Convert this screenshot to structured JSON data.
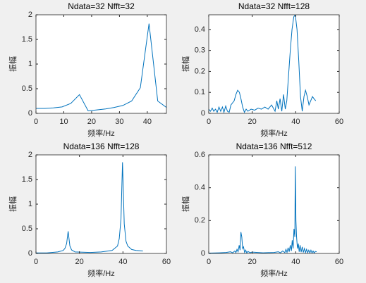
{
  "chart_data": [
    {
      "type": "line",
      "title": "Ndata=32 Nfft=32",
      "x_label": "频率/Hz",
      "y_label": "振幅",
      "x": [
        0,
        3.125,
        6.25,
        9.375,
        12.5,
        15.625,
        18.75,
        21.875,
        25,
        28.125,
        31.25,
        34.375,
        37.5,
        40.625,
        43.75,
        46.875
      ],
      "values": [
        0.1,
        0.1,
        0.11,
        0.13,
        0.2,
        0.38,
        0.05,
        0.07,
        0.09,
        0.12,
        0.16,
        0.25,
        0.52,
        1.82,
        0.25,
        0.12
      ],
      "color": "#0072bd",
      "xlim": [
        0,
        46.875
      ],
      "xticks": [
        0,
        10,
        20,
        30,
        40
      ],
      "ylim": [
        0,
        2
      ],
      "yticks": [
        0,
        0.5,
        1,
        1.5,
        2
      ]
    },
    {
      "type": "line",
      "title": "Ndata=32 Nfft=128",
      "x_label": "频率/Hz",
      "y_label": "振幅",
      "x": [
        0,
        0.8,
        1.6,
        2.3,
        3.1,
        3.9,
        4.7,
        5.5,
        6.3,
        7.0,
        7.8,
        8.6,
        9.4,
        10.2,
        11.7,
        12.5,
        13.3,
        14.1,
        14.8,
        15.6,
        16.4,
        17.2,
        18.0,
        19.5,
        21.1,
        22.7,
        24.2,
        25.8,
        27.3,
        28.9,
        30.5,
        31.3,
        32.0,
        32.8,
        33.6,
        34.4,
        35.2,
        35.9,
        36.7,
        37.5,
        38.3,
        39.1,
        39.8,
        40.6,
        41.4,
        42.2,
        43.0,
        43.8,
        44.5,
        45.3,
        46.1,
        46.9,
        47.7,
        48.4,
        49.2
      ],
      "values": [
        0.02,
        0.01,
        0.025,
        0.01,
        0.02,
        0.005,
        0.03,
        0.01,
        0.03,
        0.005,
        0.035,
        0.01,
        0.005,
        0.04,
        0.06,
        0.09,
        0.11,
        0.1,
        0.07,
        0.03,
        0.005,
        0.02,
        0.01,
        0.02,
        0.015,
        0.025,
        0.02,
        0.03,
        0.02,
        0.04,
        0.01,
        0.06,
        0.02,
        0.07,
        0.01,
        0.09,
        0.02,
        0.06,
        0.18,
        0.3,
        0.4,
        0.46,
        0.47,
        0.4,
        0.25,
        0.08,
        0.01,
        0.08,
        0.11,
        0.08,
        0.04,
        0.06,
        0.08,
        0.07,
        0.06
      ],
      "color": "#0072bd",
      "xlim": [
        0,
        60
      ],
      "xticks": [
        0,
        20,
        40,
        60
      ],
      "ylim": [
        0,
        0.47
      ],
      "yticks": [
        0,
        0.1,
        0.2,
        0.3,
        0.4
      ]
    },
    {
      "type": "line",
      "title": "Ndata=136 Nfft=128",
      "x_label": "频率/Hz",
      "y_label": "振幅",
      "x": [
        0,
        5,
        10,
        12.5,
        13.3,
        14.1,
        14.8,
        15.6,
        16.4,
        18,
        25,
        30,
        35,
        37.5,
        38.3,
        39.1,
        39.8,
        40.6,
        41.4,
        42.2,
        44,
        46,
        49.2
      ],
      "values": [
        0.01,
        0.01,
        0.03,
        0.06,
        0.1,
        0.2,
        0.45,
        0.15,
        0.07,
        0.03,
        0.02,
        0.03,
        0.06,
        0.15,
        0.3,
        0.7,
        1.85,
        0.6,
        0.25,
        0.15,
        0.08,
        0.06,
        0.05
      ],
      "color": "#0072bd",
      "xlim": [
        0,
        60
      ],
      "xticks": [
        0,
        20,
        40,
        60
      ],
      "ylim": [
        0,
        2
      ],
      "yticks": [
        0,
        0.5,
        1,
        1.5,
        2
      ]
    },
    {
      "type": "line",
      "title": "Ndata=136 Nfft=512",
      "x_label": "频率/Hz",
      "y_label": "振幅",
      "x": [
        0,
        5,
        8,
        10,
        11,
        12,
        12.5,
        13,
        13.5,
        14,
        14.4,
        14.8,
        15.2,
        15.6,
        16,
        16.5,
        17,
        17.5,
        18,
        19,
        20,
        25,
        30,
        32,
        33,
        34,
        35,
        35.5,
        36,
        36.5,
        37,
        37.5,
        38,
        38.4,
        38.8,
        39.2,
        39.6,
        39.8,
        40.1,
        40.4,
        40.8,
        41.2,
        41.6,
        42,
        42.5,
        43,
        43.5,
        44,
        44.5,
        45,
        45.5,
        46,
        46.5,
        47,
        47.5,
        48,
        48.5,
        49,
        49.6
      ],
      "values": [
        0.002,
        0.004,
        0.006,
        0.01,
        0.004,
        0.015,
        0.005,
        0.025,
        0.01,
        0.05,
        0.02,
        0.13,
        0.1,
        0.03,
        0.04,
        0.005,
        0.02,
        0.003,
        0.012,
        0.005,
        0.008,
        0.004,
        0.006,
        0.01,
        0.004,
        0.015,
        0.005,
        0.025,
        0.006,
        0.035,
        0.01,
        0.05,
        0.015,
        0.08,
        0.03,
        0.15,
        0.1,
        0.53,
        0.2,
        0.1,
        0.03,
        0.06,
        0.01,
        0.05,
        0.008,
        0.04,
        0.006,
        0.03,
        0.005,
        0.025,
        0.004,
        0.02,
        0.003,
        0.02,
        0.003,
        0.015,
        0.003,
        0.012,
        0.01
      ],
      "color": "#0072bd",
      "xlim": [
        0,
        60
      ],
      "xticks": [
        0,
        20,
        40,
        60
      ],
      "ylim": [
        0,
        0.6
      ],
      "yticks": [
        0,
        0.2,
        0.4,
        0.6
      ]
    }
  ]
}
